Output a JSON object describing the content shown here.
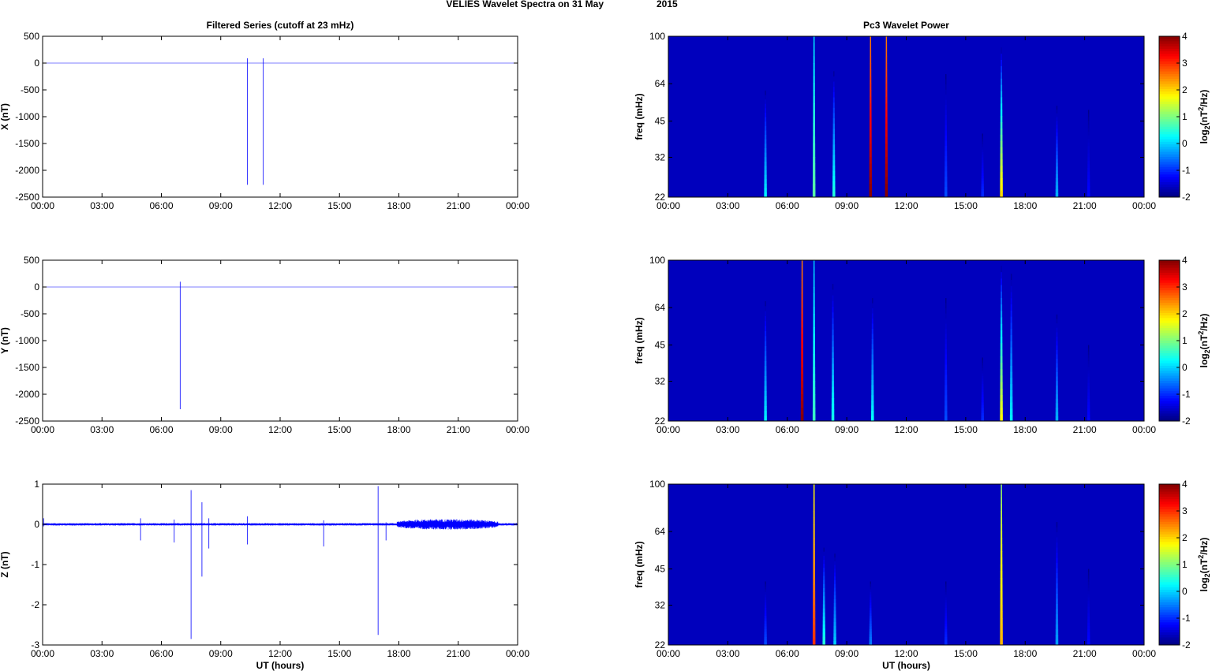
{
  "figure": {
    "title_left": "VELIES Wavelet Spectra on 31 May",
    "title_right": "2015"
  },
  "chart_data": [
    {
      "type": "line",
      "panel": "X",
      "title": "Filtered Series (cutoff at 23 mHz)",
      "xlabel": "",
      "ylabel": "X (nT)",
      "xticks": [
        "00:00",
        "03:00",
        "06:00",
        "09:00",
        "12:00",
        "15:00",
        "18:00",
        "21:00",
        "00:00"
      ],
      "xlim": [
        0,
        24
      ],
      "ylim": [
        -2500,
        500
      ],
      "yticks": [
        500,
        0,
        -500,
        -1000,
        -1500,
        -2000,
        -2500
      ],
      "color": "#0000ff",
      "baseline": 0,
      "noise": 0,
      "spikes": [
        {
          "t": 10.35,
          "min": -2270,
          "max": 90
        },
        {
          "t": 11.15,
          "min": -2270,
          "max": 90
        }
      ]
    },
    {
      "type": "line",
      "panel": "Y",
      "title": "",
      "xlabel": "",
      "ylabel": "Y (nT)",
      "xticks": [
        "00:00",
        "03:00",
        "06:00",
        "09:00",
        "12:00",
        "15:00",
        "18:00",
        "21:00",
        "00:00"
      ],
      "xlim": [
        0,
        24
      ],
      "ylim": [
        -2500,
        500
      ],
      "yticks": [
        500,
        0,
        -500,
        -1000,
        -1500,
        -2000,
        -2500
      ],
      "color": "#0000ff",
      "baseline": 0,
      "noise": 0,
      "spikes": [
        {
          "t": 6.95,
          "min": -2280,
          "max": 100
        }
      ]
    },
    {
      "type": "line",
      "panel": "Z",
      "title": "",
      "xlabel": "UT (hours)",
      "ylabel": "Z (nT)",
      "xticks": [
        "00:00",
        "03:00",
        "06:00",
        "09:00",
        "12:00",
        "15:00",
        "18:00",
        "21:00",
        "00:00"
      ],
      "xlim": [
        0,
        24
      ],
      "ylim": [
        -3,
        1
      ],
      "yticks": [
        1,
        0,
        -1,
        -2,
        -3
      ],
      "color": "#0000ff",
      "baseline": 0,
      "noise": 0.03,
      "noisy_intervals": [
        {
          "start": 17.9,
          "end": 23.0,
          "amp": 0.13
        }
      ],
      "spikes": [
        {
          "t": 0.05,
          "min": -0.05,
          "max": 0.15
        },
        {
          "t": 4.95,
          "min": -0.4,
          "max": 0.15
        },
        {
          "t": 6.65,
          "min": -0.45,
          "max": 0.12
        },
        {
          "t": 7.5,
          "min": -2.85,
          "max": 0.85
        },
        {
          "t": 8.05,
          "min": -1.3,
          "max": 0.55
        },
        {
          "t": 8.4,
          "min": -0.6,
          "max": 0.15
        },
        {
          "t": 10.35,
          "min": -0.5,
          "max": 0.2
        },
        {
          "t": 14.2,
          "min": -0.55,
          "max": 0.1
        },
        {
          "t": 16.95,
          "min": -2.75,
          "max": 0.95
        },
        {
          "t": 17.35,
          "min": -0.4,
          "max": 0.05
        }
      ]
    },
    {
      "type": "heatmap",
      "panel": "X",
      "title": "Pc3 Wavelet Power",
      "xlabel": "",
      "ylabel": "freq (mHz)",
      "colorbar_label": "log2(nT²/Hz)",
      "colorbar_label_parts": [
        "log",
        "2",
        "(nT",
        "2",
        "/Hz)"
      ],
      "xticks": [
        "00:00",
        "03:00",
        "06:00",
        "09:00",
        "12:00",
        "15:00",
        "18:00",
        "21:00",
        "00:00"
      ],
      "xlim": [
        0,
        24
      ],
      "yscale": "log",
      "ylim": [
        22,
        100
      ],
      "yticks": [
        100,
        64,
        45,
        32,
        22
      ],
      "clim": [
        -2,
        4
      ],
      "cticks": [
        4,
        3,
        2,
        1,
        0,
        -1,
        -2
      ],
      "background": -2,
      "streaks": [
        {
          "t": 4.9,
          "v": 0.2,
          "fmax": 60
        },
        {
          "t": 7.35,
          "v": 0.8,
          "fmax": 100
        },
        {
          "t": 8.35,
          "v": 0.5,
          "fmax": 72
        },
        {
          "t": 10.2,
          "v": 4.0,
          "fmax": 100
        },
        {
          "t": 11.0,
          "v": 4.0,
          "fmax": 100
        },
        {
          "t": 14.0,
          "v": -0.8,
          "fmax": 70
        },
        {
          "t": 15.85,
          "v": -1.0,
          "fmax": 40
        },
        {
          "t": 16.8,
          "v": 2.0,
          "fmax": 90
        },
        {
          "t": 19.6,
          "v": -0.2,
          "fmax": 52
        },
        {
          "t": 21.2,
          "v": -1.2,
          "fmax": 50
        }
      ]
    },
    {
      "type": "heatmap",
      "panel": "Y",
      "title": "",
      "xlabel": "",
      "ylabel": "freq (mHz)",
      "colorbar_label": "log2(nT²/Hz)",
      "colorbar_label_parts": [
        "log",
        "2",
        "(nT",
        "2",
        "/Hz)"
      ],
      "xticks": [
        "00:00",
        "03:00",
        "06:00",
        "09:00",
        "12:00",
        "15:00",
        "18:00",
        "21:00",
        "00:00"
      ],
      "xlim": [
        0,
        24
      ],
      "yscale": "log",
      "ylim": [
        22,
        100
      ],
      "yticks": [
        100,
        64,
        45,
        32,
        22
      ],
      "clim": [
        -2,
        4
      ],
      "cticks": [
        4,
        3,
        2,
        1,
        0,
        -1,
        -2
      ],
      "background": -2,
      "streaks": [
        {
          "t": 4.9,
          "v": 0.2,
          "fmax": 68
        },
        {
          "t": 6.75,
          "v": 4.0,
          "fmax": 100
        },
        {
          "t": 7.35,
          "v": 0.6,
          "fmax": 100
        },
        {
          "t": 8.3,
          "v": 0.4,
          "fmax": 80
        },
        {
          "t": 10.3,
          "v": 0.3,
          "fmax": 70
        },
        {
          "t": 14.0,
          "v": -0.8,
          "fmax": 70
        },
        {
          "t": 15.85,
          "v": -1.0,
          "fmax": 40
        },
        {
          "t": 16.8,
          "v": 1.8,
          "fmax": 95
        },
        {
          "t": 17.3,
          "v": 0.2,
          "fmax": 88
        },
        {
          "t": 19.6,
          "v": -0.2,
          "fmax": 60
        },
        {
          "t": 21.2,
          "v": -1.2,
          "fmax": 45
        }
      ]
    },
    {
      "type": "heatmap",
      "panel": "Z",
      "title": "",
      "xlabel": "UT (hours)",
      "ylabel": "freq (mHz)",
      "colorbar_label": "log2(nT²/Hz)",
      "colorbar_label_parts": [
        "log",
        "2",
        "(nT",
        "2",
        "/Hz)"
      ],
      "xticks": [
        "00:00",
        "03:00",
        "06:00",
        "09:00",
        "12:00",
        "15:00",
        "18:00",
        "21:00",
        "00:00"
      ],
      "xlim": [
        0,
        24
      ],
      "yscale": "log",
      "ylim": [
        22,
        100
      ],
      "yticks": [
        100,
        64,
        45,
        32,
        22
      ],
      "clim": [
        -2,
        4
      ],
      "cticks": [
        4,
        3,
        2,
        1,
        0,
        -1,
        -2
      ],
      "background": -2,
      "streaks": [
        {
          "t": 4.9,
          "v": -0.8,
          "fmax": 40
        },
        {
          "t": 7.35,
          "v": 3.0,
          "fmax": 100
        },
        {
          "t": 7.85,
          "v": 0.5,
          "fmax": 55
        },
        {
          "t": 8.4,
          "v": 0.0,
          "fmax": 52
        },
        {
          "t": 10.2,
          "v": -0.5,
          "fmax": 40
        },
        {
          "t": 14.0,
          "v": -1.0,
          "fmax": 40
        },
        {
          "t": 16.8,
          "v": 2.2,
          "fmax": 100
        },
        {
          "t": 19.6,
          "v": -0.3,
          "fmax": 70
        },
        {
          "t": 21.2,
          "v": -1.2,
          "fmax": 45
        }
      ]
    }
  ]
}
